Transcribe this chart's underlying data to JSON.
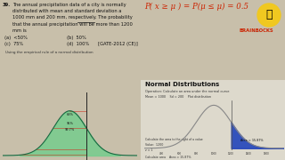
{
  "bg_color": "#c8bfaa",
  "left_bg": "#c8bfaa",
  "right_top_bg": "#c8bfaa",
  "right_bottom_bg": "#e8e4d8",
  "question_number": "39.",
  "question_text_line1": "The annual precipitation data of a city is normally",
  "question_text_line2": "distributed with mean and standard deviation a",
  "question_text_line3": "1000 mm and 200 mm, respectively. The probability",
  "question_text_line4": "that the annual precipitation will be more than 1200",
  "question_text_line5": "mm is",
  "option_a": "(a)  <50%",
  "option_b": "(b)  50%",
  "option_c": "(c)  75%",
  "option_d": "(d)  100%",
  "gate_ref": "[GATE-2012 (CE)]",
  "formula_text": "P( x ≥ μ ) = P(μ ≤ μ) = 0.5",
  "logo_text": "BRAINBOCKS",
  "normal_dist_title": "Normal Distributions",
  "normal_dist_subtitle": "Operation: Calculate an area under the normal curve",
  "normal_dist_params": "Mean = 1000    Sd = 200    Plot distribution",
  "empirical_rule_text": "Using the empirical rule of a normal distribution",
  "right_chart_note": "Area = 15.87%",
  "calculate_text": "Calculate the area to the right of a value",
  "value_label": "Value:  1200",
  "z_label": "z = 1",
  "answer_label": "Calculate area    Area = 15.87%",
  "mu": 1000,
  "sigma": 200,
  "bell_fill_color": "#5cc878",
  "bell_line_color": "#1a6640",
  "red_line_color": "#cc3322",
  "tail_fill_color": "#2244bb",
  "vline_color": "#333333",
  "pct_68": "68%",
  "pct_95": "95%",
  "pct_997": "99.7%"
}
